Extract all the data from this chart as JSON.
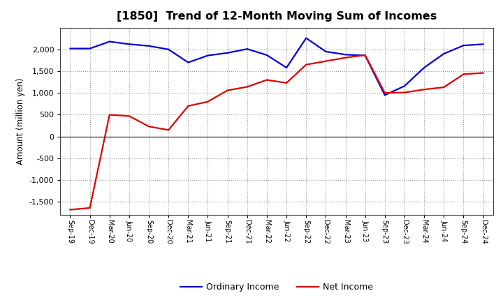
{
  "title": "[1850]  Trend of 12-Month Moving Sum of Incomes",
  "ylabel": "Amount (million yen)",
  "background_color": "#ffffff",
  "grid_color": "#999999",
  "x_labels": [
    "Sep-19",
    "Dec-19",
    "Mar-20",
    "Jun-20",
    "Sep-20",
    "Dec-20",
    "Mar-21",
    "Jun-21",
    "Sep-21",
    "Dec-21",
    "Mar-22",
    "Jun-22",
    "Sep-22",
    "Dec-22",
    "Mar-23",
    "Jun-23",
    "Sep-23",
    "Dec-23",
    "Mar-24",
    "Jun-24",
    "Sep-24",
    "Dec-24"
  ],
  "ordinary_income": [
    2020,
    2020,
    2180,
    2120,
    2080,
    2000,
    1700,
    1860,
    1920,
    2010,
    1870,
    1580,
    2260,
    1950,
    1880,
    1860,
    950,
    1160,
    1580,
    1900,
    2090,
    2120
  ],
  "net_income": [
    -1680,
    -1640,
    500,
    470,
    230,
    150,
    700,
    800,
    1060,
    1140,
    1300,
    1230,
    1650,
    1730,
    1810,
    1870,
    1000,
    1010,
    1080,
    1130,
    1430,
    1460
  ],
  "ordinary_income_color": "#0000dd",
  "net_income_color": "#dd0000",
  "ylim": [
    -1800,
    2500
  ],
  "yticks": [
    -1500,
    -1000,
    -500,
    0,
    500,
    1000,
    1500,
    2000
  ],
  "legend_labels": [
    "Ordinary Income",
    "Net Income"
  ],
  "line_width": 1.6
}
